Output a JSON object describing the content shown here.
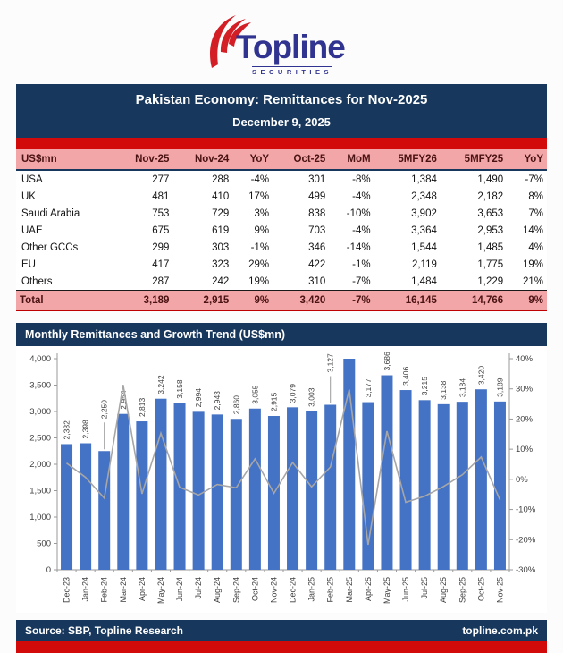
{
  "logo": {
    "brand": "Topline",
    "sub": "SECURITIES"
  },
  "header": {
    "title": "Pakistan Economy: Remittances for Nov-2025",
    "date": "December 9, 2025"
  },
  "table": {
    "columns": [
      "US$mn",
      "Nov-25",
      "Nov-24",
      "YoY",
      "Oct-25",
      "MoM",
      "5MFY26",
      "5MFY25",
      "YoY"
    ],
    "rows": [
      {
        "label": "USA",
        "values": [
          "277",
          "288",
          "-4%",
          "301",
          "-8%",
          "1,384",
          "1,490",
          "-7%"
        ]
      },
      {
        "label": "UK",
        "values": [
          "481",
          "410",
          "17%",
          "499",
          "-4%",
          "2,348",
          "2,182",
          "8%"
        ]
      },
      {
        "label": "Saudi Arabia",
        "values": [
          "753",
          "729",
          "3%",
          "838",
          "-10%",
          "3,902",
          "3,653",
          "7%"
        ]
      },
      {
        "label": "UAE",
        "values": [
          "675",
          "619",
          "9%",
          "703",
          "-4%",
          "3,364",
          "2,953",
          "14%"
        ]
      },
      {
        "label": "Other GCCs",
        "values": [
          "299",
          "303",
          "-1%",
          "346",
          "-14%",
          "1,544",
          "1,485",
          "4%"
        ]
      },
      {
        "label": "EU",
        "values": [
          "417",
          "323",
          "29%",
          "422",
          "-1%",
          "2,119",
          "1,775",
          "19%"
        ]
      },
      {
        "label": "Others",
        "values": [
          "287",
          "242",
          "19%",
          "310",
          "-7%",
          "1,484",
          "1,229",
          "21%"
        ]
      }
    ],
    "total": {
      "label": "Total",
      "values": [
        "3,189",
        "2,915",
        "9%",
        "3,420",
        "-7%",
        "16,145",
        "14,766",
        "9%"
      ]
    }
  },
  "chart": {
    "title": "Monthly Remittances and Growth Trend (US$mn)"
  },
  "chart_data": {
    "type": "bar",
    "title": "Monthly Remittances and Growth Trend (US$mn)",
    "categories": [
      "Dec-23",
      "Jan-24",
      "Feb-24",
      "Mar-24",
      "Apr-24",
      "May-24",
      "Jun-24",
      "Jul-24",
      "Aug-24",
      "Sep-24",
      "Oct-24",
      "Nov-24",
      "Dec-24",
      "Jan-25",
      "Feb-25",
      "Mar-25",
      "Apr-25",
      "May-25",
      "Jun-25",
      "Jul-25",
      "Aug-25",
      "Sep-25",
      "Oct-25",
      "Nov-25"
    ],
    "series": [
      {
        "name": "Monthly Remittances (US$mn)",
        "type": "bar",
        "color": "#4472c4",
        "values": [
          2382,
          2398,
          2250,
          2954,
          2813,
          3242,
          3158,
          2994,
          2943,
          2860,
          3055,
          2915,
          3079,
          3003,
          3127,
          4060,
          3177,
          3686,
          3406,
          3215,
          3138,
          3184,
          3420,
          3189
        ],
        "data_labels": [
          "2,382",
          "2,398",
          "2,250",
          "2,954",
          "2,813",
          "3,242",
          "3,158",
          "2,994",
          "2,943",
          "2,860",
          "3,055",
          "2,915",
          "3,079",
          "3,003",
          "3,127",
          "",
          "3,177",
          "3,686",
          "3,406",
          "3,215",
          "3,138",
          "3,184",
          "3,420",
          "3,189"
        ],
        "leader_label_indices": [
          2,
          14
        ]
      },
      {
        "name": "Growth Trend (MoM %)",
        "type": "line",
        "axis": "right",
        "color": "#a6a6a6",
        "values": [
          5.4,
          0.7,
          -6.2,
          31.3,
          -4.8,
          15.3,
          -2.6,
          -5.2,
          -1.7,
          -2.8,
          6.8,
          -4.6,
          5.6,
          -2.5,
          4.1,
          29.8,
          -21.7,
          16.0,
          -7.6,
          -5.6,
          -2.4,
          1.5,
          7.4,
          -6.8
        ]
      }
    ],
    "left_axis": {
      "min": 0,
      "max": 4000,
      "step": 500,
      "tick_labels": [
        "0",
        "500",
        "1,000",
        "1,500",
        "2,000",
        "2,500",
        "3,000",
        "3,500",
        "4,000"
      ]
    },
    "right_axis": {
      "min": -30,
      "max": 40,
      "step": 10,
      "tick_labels": [
        "-30%",
        "-20%",
        "-10%",
        "0%",
        "10%",
        "20%",
        "30%",
        "40%"
      ]
    },
    "grid": false,
    "legend": "none"
  },
  "footer": {
    "source": "Source: SBP, Topline Research",
    "website": "topline.com.pk"
  },
  "colors": {
    "navy": "#17375d",
    "red": "#d20a0a",
    "pink": "#f3a6a8",
    "maroon_text": "#4a1212",
    "bar_blue": "#4472c4",
    "line_gray": "#a6a6a6",
    "logo_navy": "#303390",
    "logo_red": "#d41e26",
    "axis_text": "#404040"
  }
}
